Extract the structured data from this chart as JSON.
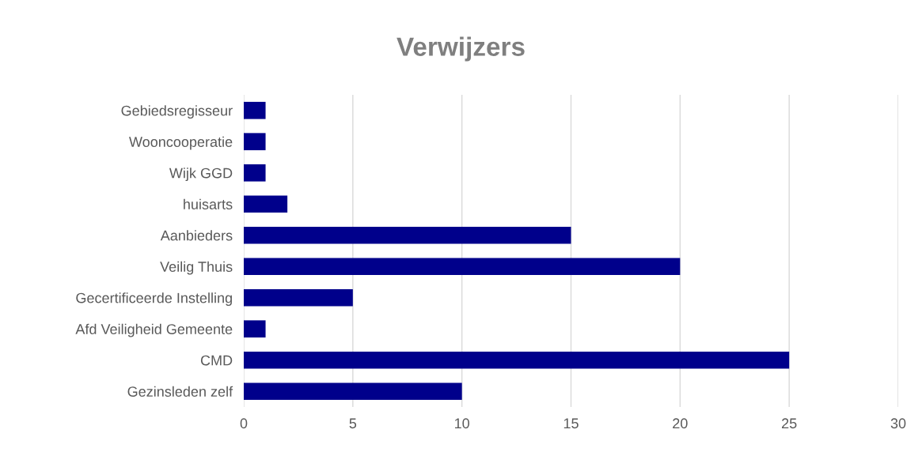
{
  "chart_data": {
    "type": "bar",
    "orientation": "horizontal",
    "title": "Verwijzers",
    "categories": [
      "Gebiedsregisseur",
      "Wooncooperatie",
      "Wijk GGD",
      "huisarts",
      "Aanbieders",
      "Veilig Thuis",
      "Gecertificeerde Instelling",
      "Afd Veiligheid Gemeente",
      "CMD",
      "Gezinsleden zelf"
    ],
    "values": [
      1,
      1,
      1,
      2,
      15,
      20,
      5,
      1,
      25,
      10
    ],
    "color": "#00008b",
    "xlim": [
      0,
      30
    ],
    "xticks": [
      0,
      5,
      10,
      15,
      20,
      25,
      30
    ],
    "grid": "x",
    "legend": false
  }
}
